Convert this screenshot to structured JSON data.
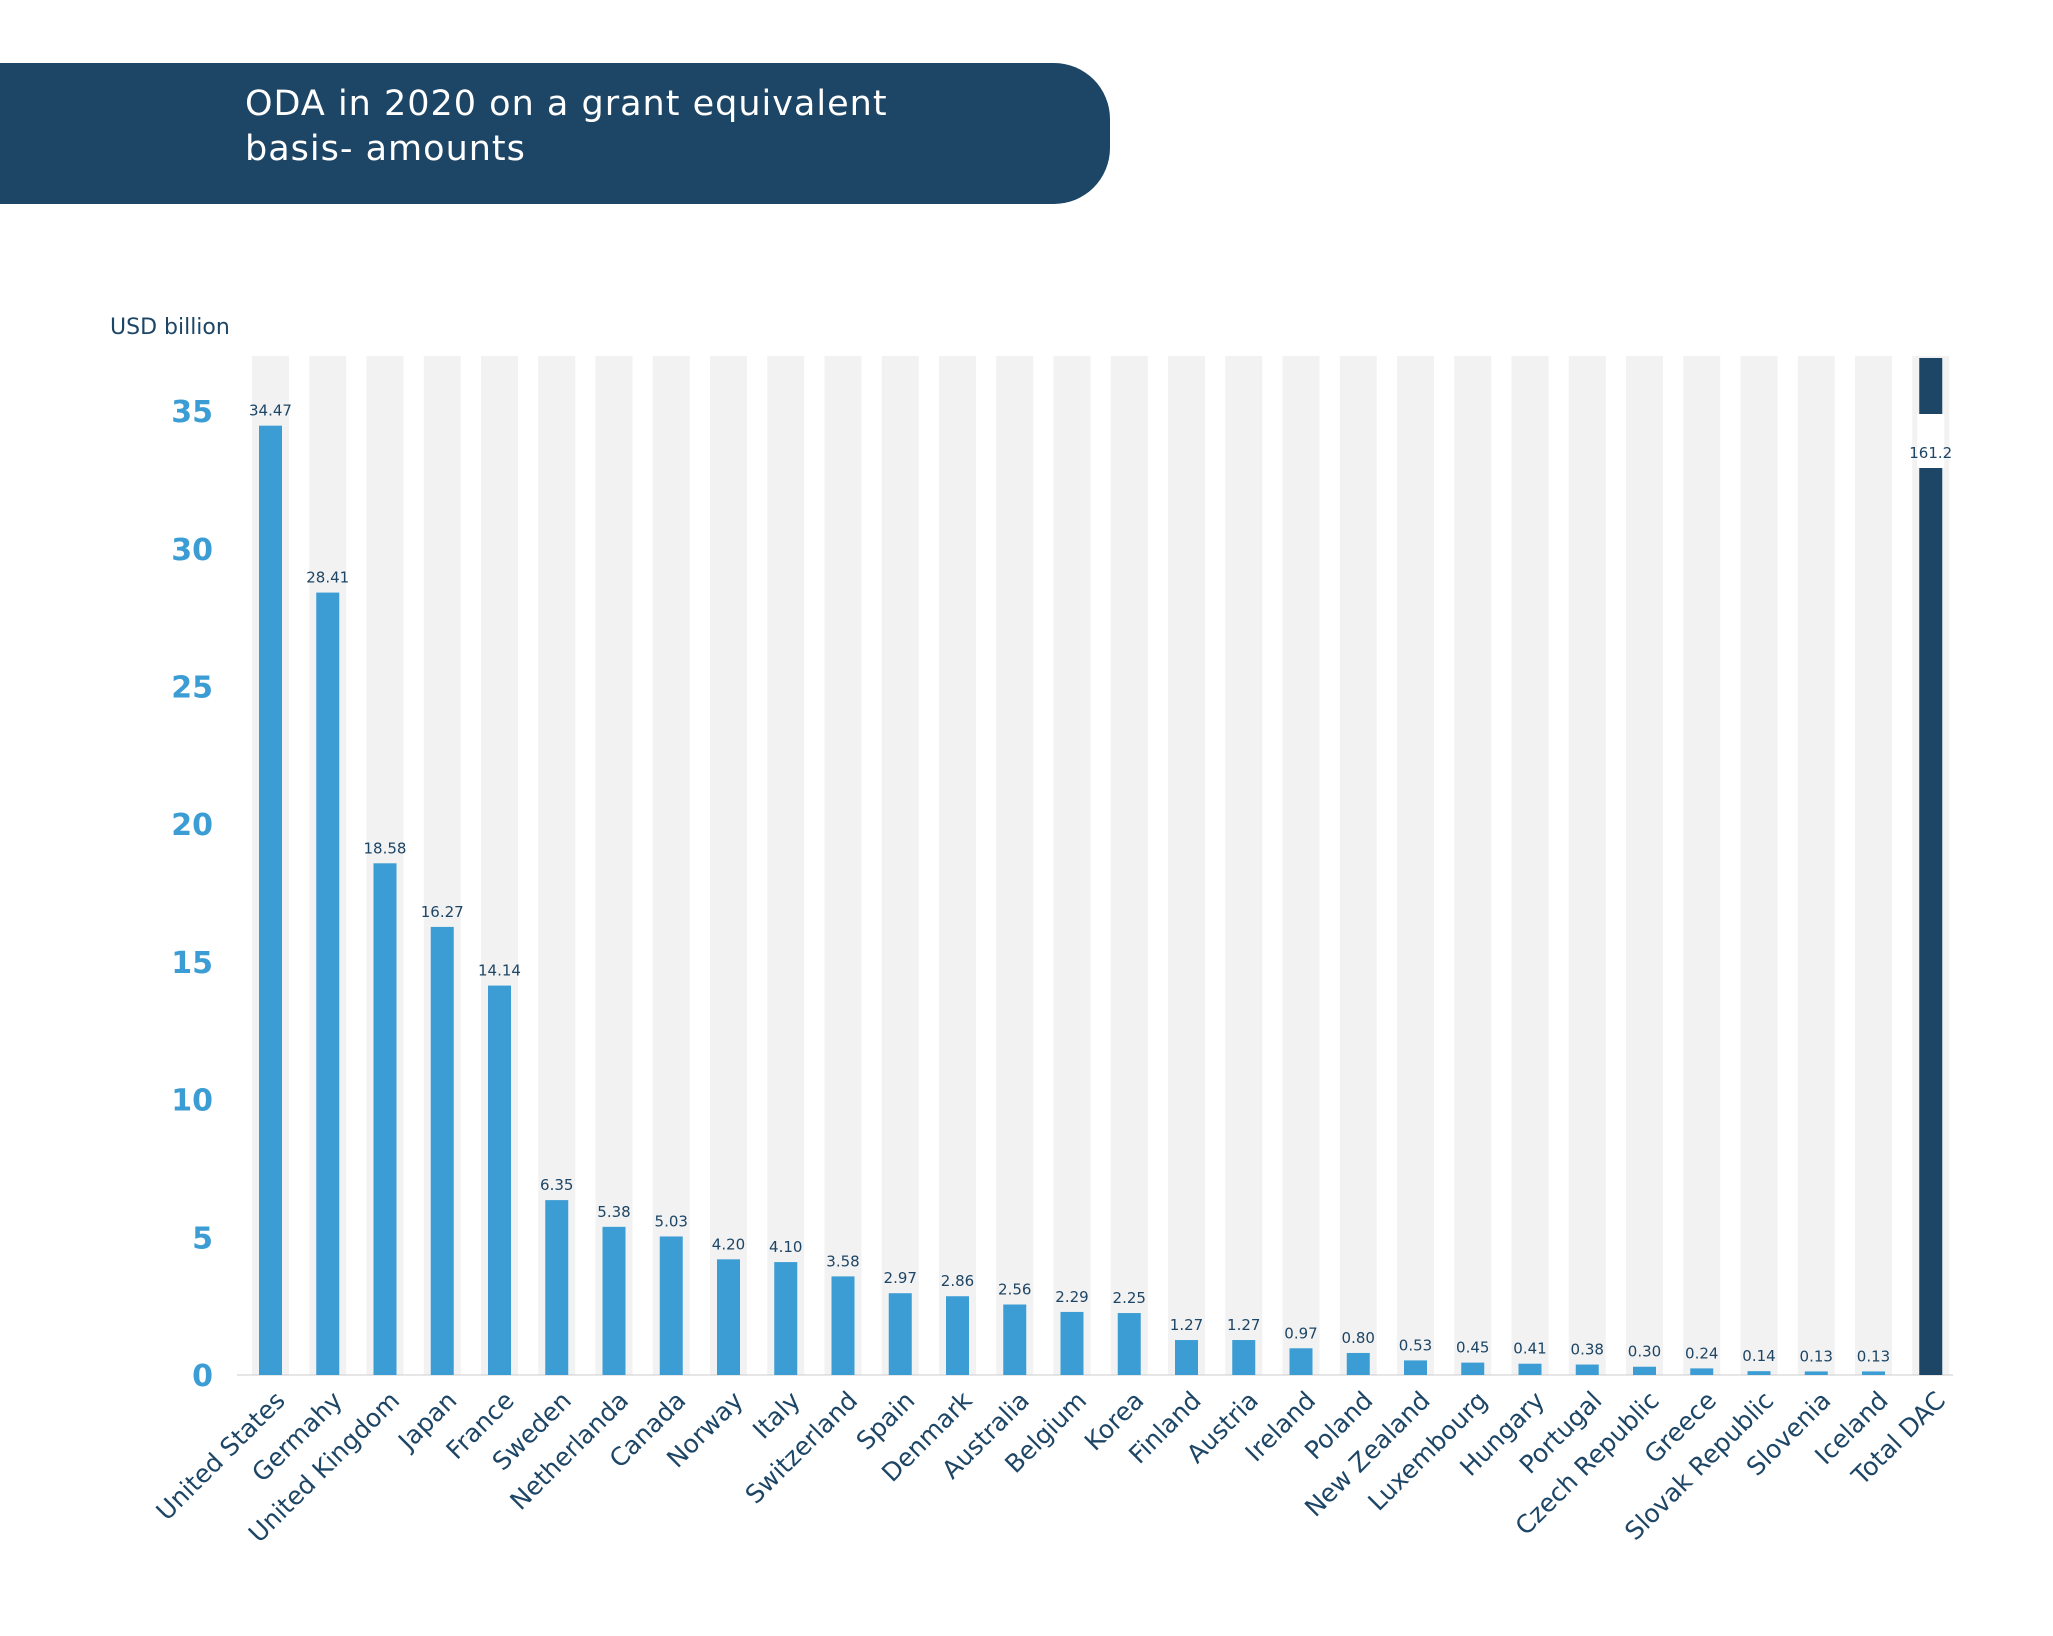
{
  "title_lines": [
    "ODA in 2020 on a grant equivalent",
    "basis- amounts"
  ],
  "colors": {
    "banner": "#1d4565",
    "bar": "#3c9dd4",
    "total_bar": "#1d4565",
    "stripe": "#f2f2f2",
    "tick_label": "#3c9dd4",
    "text": "#1d4565"
  },
  "chart_data": {
    "type": "bar",
    "title": "ODA in 2020 on a grant equivalent basis- amounts",
    "ylabel": "USD billion",
    "ylim": [
      0,
      37
    ],
    "yticks": [
      0,
      5,
      10,
      15,
      20,
      25,
      30,
      35
    ],
    "grid": false,
    "categories": [
      "United States",
      "Germahy",
      "United Kingdom",
      "Japan",
      "France",
      "Sweden",
      "Netherlanda",
      "Canada",
      "Norway",
      "Italy",
      "Switzerland",
      "Spain",
      "Denmark",
      "Australia",
      "Belgium",
      "Korea",
      "Finland",
      "Austria",
      "Ireland",
      "Poland",
      "New Zealand",
      "Luxembourg",
      "Hungary",
      "Portugal",
      "Czech Republic",
      "Greece",
      "Slovak Republic",
      "Slovenia",
      "Iceland",
      "Total DAC"
    ],
    "values": [
      34.47,
      28.41,
      18.58,
      16.27,
      14.14,
      6.35,
      5.38,
      5.03,
      4.2,
      4.1,
      3.58,
      2.97,
      2.86,
      2.56,
      2.29,
      2.25,
      1.27,
      1.27,
      0.97,
      0.8,
      0.53,
      0.45,
      0.41,
      0.38,
      0.3,
      0.24,
      0.14,
      0.13,
      0.13,
      161.2
    ],
    "value_labels": [
      "34.47",
      "28.41",
      "18.58",
      "16.27",
      "14.14",
      "6.35",
      "5.38",
      "5.03",
      "4.20",
      "4.10",
      "3.58",
      "2.97",
      "2.86",
      "2.56",
      "2.29",
      "2.25",
      "1.27",
      "1.27",
      "0.97",
      "0.80",
      "0.53",
      "0.45",
      "0.41",
      "0.38",
      "0.30",
      "0.24",
      "0.14",
      "0.13",
      "0.13",
      "161.2"
    ],
    "broken_axis_bar": "Total DAC"
  }
}
